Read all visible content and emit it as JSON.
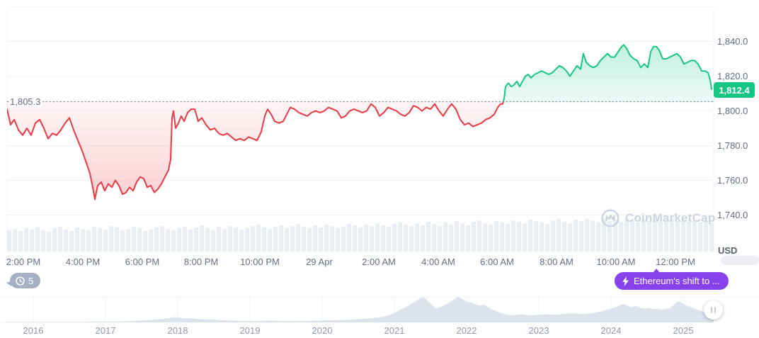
{
  "watermark": {
    "label": "CoinMarketCap"
  },
  "badges": {
    "history_count": "5",
    "annotation_label": "Ethereum's shift to ..."
  },
  "colors": {
    "up": "#16c784",
    "down": "#ea3943",
    "annotation_purple": "#8742ec",
    "history_badge_gray": "#a6b0c3",
    "grid": "#eff2f5",
    "axis_text": "#616e85",
    "baseline_dots": "#8e97a8",
    "volume_bar": "#e9eef4",
    "navigator_fill": "#dde3ed",
    "watermark_gray": "#ccd3e0"
  },
  "chart_data": {
    "type": "line",
    "title": "Ethereum price chart (intraday, baseline vs previous close)",
    "currency": "USD",
    "baseline": {
      "value": 1805.3,
      "label": "1,805.3"
    },
    "last_price": {
      "value": 1812.4,
      "label": "1,812.4"
    },
    "ylim": [
      1718,
      1860
    ],
    "grid": "horizontal",
    "y_ticks": [
      {
        "v": 1840,
        "label": "1,840.0"
      },
      {
        "v": 1820,
        "label": "1,820.0"
      },
      {
        "v": 1800,
        "label": "1,800.0"
      },
      {
        "v": 1780,
        "label": "1,780.0"
      },
      {
        "v": 1760,
        "label": "1,760.0"
      },
      {
        "v": 1740,
        "label": "1,740.0"
      }
    ],
    "x_ticks": [
      {
        "x": 33,
        "label": "2:00 PM"
      },
      {
        "x": 117,
        "label": "4:00 PM"
      },
      {
        "x": 201,
        "label": "6:00 PM"
      },
      {
        "x": 284,
        "label": "8:00 PM"
      },
      {
        "x": 367,
        "label": "10:00 PM"
      },
      {
        "x": 451,
        "label": "29 Apr"
      },
      {
        "x": 535,
        "label": "2:00 AM"
      },
      {
        "x": 619,
        "label": "4:00 AM"
      },
      {
        "x": 702,
        "label": "6:00 AM"
      },
      {
        "x": 786,
        "label": "8:00 AM"
      },
      {
        "x": 870,
        "label": "10:00 AM"
      },
      {
        "x": 954,
        "label": "12:00 PM"
      }
    ],
    "series": [
      [
        10,
        1801
      ],
      [
        15,
        1792
      ],
      [
        20,
        1795
      ],
      [
        26,
        1789
      ],
      [
        32,
        1786
      ],
      [
        38,
        1790
      ],
      [
        44,
        1786
      ],
      [
        50,
        1793
      ],
      [
        56,
        1795
      ],
      [
        62,
        1790
      ],
      [
        68,
        1784
      ],
      [
        74,
        1787
      ],
      [
        80,
        1786
      ],
      [
        86,
        1789
      ],
      [
        92,
        1793
      ],
      [
        98,
        1796
      ],
      [
        104,
        1789
      ],
      [
        110,
        1783
      ],
      [
        116,
        1777
      ],
      [
        122,
        1770
      ],
      [
        127,
        1764
      ],
      [
        131,
        1756
      ],
      [
        134,
        1749
      ],
      [
        138,
        1757
      ],
      [
        143,
        1759
      ],
      [
        148,
        1754
      ],
      [
        153,
        1758
      ],
      [
        158,
        1756
      ],
      [
        163,
        1760
      ],
      [
        168,
        1757
      ],
      [
        173,
        1752
      ],
      [
        178,
        1753
      ],
      [
        183,
        1756
      ],
      [
        188,
        1754
      ],
      [
        193,
        1759
      ],
      [
        198,
        1762
      ],
      [
        203,
        1761
      ],
      [
        208,
        1756
      ],
      [
        213,
        1757
      ],
      [
        218,
        1753
      ],
      [
        223,
        1755
      ],
      [
        228,
        1758
      ],
      [
        233,
        1762
      ],
      [
        238,
        1766
      ],
      [
        241,
        1772
      ],
      [
        243,
        1796
      ],
      [
        245,
        1800
      ],
      [
        248,
        1790
      ],
      [
        252,
        1793
      ],
      [
        256,
        1797
      ],
      [
        260,
        1794
      ],
      [
        265,
        1799
      ],
      [
        270,
        1801
      ],
      [
        275,
        1801
      ],
      [
        280,
        1794
      ],
      [
        285,
        1796
      ],
      [
        291,
        1792
      ],
      [
        297,
        1789
      ],
      [
        303,
        1790
      ],
      [
        309,
        1787
      ],
      [
        315,
        1786
      ],
      [
        321,
        1787
      ],
      [
        327,
        1785
      ],
      [
        333,
        1783
      ],
      [
        339,
        1784
      ],
      [
        345,
        1783
      ],
      [
        351,
        1785
      ],
      [
        357,
        1784
      ],
      [
        363,
        1783
      ],
      [
        369,
        1788
      ],
      [
        374,
        1797
      ],
      [
        378,
        1801
      ],
      [
        383,
        1798
      ],
      [
        388,
        1794
      ],
      [
        394,
        1793
      ],
      [
        400,
        1794
      ],
      [
        405,
        1798
      ],
      [
        410,
        1802
      ],
      [
        416,
        1801
      ],
      [
        422,
        1799
      ],
      [
        428,
        1798
      ],
      [
        434,
        1797
      ],
      [
        440,
        1799
      ],
      [
        446,
        1800
      ],
      [
        452,
        1799
      ],
      [
        458,
        1800
      ],
      [
        464,
        1802
      ],
      [
        470,
        1801
      ],
      [
        476,
        1800
      ],
      [
        482,
        1796
      ],
      [
        488,
        1797
      ],
      [
        494,
        1800
      ],
      [
        500,
        1801
      ],
      [
        506,
        1800
      ],
      [
        512,
        1799
      ],
      [
        518,
        1800
      ],
      [
        524,
        1804
      ],
      [
        530,
        1802
      ],
      [
        536,
        1797
      ],
      [
        542,
        1799
      ],
      [
        548,
        1802
      ],
      [
        554,
        1801
      ],
      [
        560,
        1800
      ],
      [
        566,
        1798
      ],
      [
        572,
        1797
      ],
      [
        578,
        1799
      ],
      [
        584,
        1803
      ],
      [
        590,
        1802
      ],
      [
        596,
        1800
      ],
      [
        602,
        1802
      ],
      [
        608,
        1801
      ],
      [
        614,
        1804
      ],
      [
        620,
        1800
      ],
      [
        626,
        1797
      ],
      [
        632,
        1801
      ],
      [
        638,
        1804
      ],
      [
        644,
        1801
      ],
      [
        650,
        1795
      ],
      [
        656,
        1792
      ],
      [
        662,
        1793
      ],
      [
        668,
        1791
      ],
      [
        674,
        1792
      ],
      [
        680,
        1793
      ],
      [
        686,
        1795
      ],
      [
        692,
        1796
      ],
      [
        698,
        1798
      ],
      [
        703,
        1802
      ],
      [
        707,
        1804
      ],
      [
        710,
        1804
      ],
      [
        712,
        1807
      ],
      [
        714,
        1814
      ],
      [
        718,
        1816
      ],
      [
        722,
        1814
      ],
      [
        726,
        1815
      ],
      [
        730,
        1817
      ],
      [
        734,
        1814
      ],
      [
        738,
        1817
      ],
      [
        742,
        1820
      ],
      [
        746,
        1821
      ],
      [
        750,
        1819
      ],
      [
        755,
        1821
      ],
      [
        760,
        1822
      ],
      [
        765,
        1823
      ],
      [
        770,
        1822
      ],
      [
        775,
        1821
      ],
      [
        780,
        1822
      ],
      [
        785,
        1824
      ],
      [
        790,
        1826
      ],
      [
        795,
        1825
      ],
      [
        800,
        1823
      ],
      [
        805,
        1820
      ],
      [
        810,
        1823
      ],
      [
        815,
        1826
      ],
      [
        820,
        1824
      ],
      [
        824,
        1833
      ],
      [
        828,
        1828
      ],
      [
        833,
        1826
      ],
      [
        838,
        1825
      ],
      [
        843,
        1826
      ],
      [
        848,
        1829
      ],
      [
        853,
        1831
      ],
      [
        858,
        1833
      ],
      [
        863,
        1831
      ],
      [
        868,
        1831
      ],
      [
        873,
        1834
      ],
      [
        878,
        1837
      ],
      [
        881,
        1838
      ],
      [
        885,
        1836
      ],
      [
        890,
        1832
      ],
      [
        895,
        1830
      ],
      [
        900,
        1829
      ],
      [
        905,
        1825
      ],
      [
        910,
        1827
      ],
      [
        915,
        1825
      ],
      [
        919,
        1834
      ],
      [
        923,
        1837
      ],
      [
        927,
        1837
      ],
      [
        931,
        1835
      ],
      [
        936,
        1830
      ],
      [
        941,
        1830
      ],
      [
        946,
        1831
      ],
      [
        951,
        1832
      ],
      [
        956,
        1833
      ],
      [
        961,
        1831
      ],
      [
        966,
        1827
      ],
      [
        971,
        1828
      ],
      [
        976,
        1829
      ],
      [
        981,
        1829
      ],
      [
        986,
        1827
      ],
      [
        991,
        1823
      ],
      [
        996,
        1823
      ],
      [
        1000,
        1822
      ],
      [
        1003,
        1818
      ],
      [
        1005,
        1812.4
      ]
    ],
    "volume_bars": [
      30,
      32,
      29,
      33,
      31,
      34,
      30,
      28,
      33,
      35,
      31,
      29,
      34,
      32,
      30,
      35,
      33,
      31,
      36,
      34,
      30,
      32,
      35,
      33,
      29,
      31,
      34,
      36,
      32,
      30,
      33,
      35,
      31,
      34,
      37,
      33,
      30,
      35,
      32,
      36,
      34,
      31,
      33,
      36,
      38,
      34,
      32,
      35,
      37,
      33,
      36,
      39,
      35,
      33,
      37,
      34,
      38,
      36,
      33,
      35,
      39,
      37,
      34,
      38,
      36,
      40,
      37,
      35,
      39,
      41,
      38,
      36,
      40,
      37,
      42,
      39,
      36,
      41,
      38,
      43,
      40,
      37,
      42,
      44,
      40,
      38,
      43,
      41,
      39,
      44,
      42,
      40,
      45,
      43,
      41,
      39,
      44,
      46,
      42,
      40,
      45,
      43,
      46,
      44,
      41,
      46,
      43,
      45,
      42,
      46,
      44,
      41,
      45,
      43,
      46,
      42,
      44,
      46,
      43,
      45,
      42,
      44,
      41,
      43,
      40
    ],
    "navigator": {
      "years": [
        {
          "x": 47,
          "label": "2016"
        },
        {
          "x": 149,
          "label": "2017"
        },
        {
          "x": 251,
          "label": "2018"
        },
        {
          "x": 353,
          "label": "2019"
        },
        {
          "x": 455,
          "label": "2020"
        },
        {
          "x": 557,
          "label": "2021"
        },
        {
          "x": 659,
          "label": "2022"
        },
        {
          "x": 761,
          "label": "2023"
        },
        {
          "x": 863,
          "label": "2024"
        },
        {
          "x": 965,
          "label": "2025"
        }
      ],
      "profile": [
        [
          10,
          0.02
        ],
        [
          30,
          0.02
        ],
        [
          50,
          0.02
        ],
        [
          70,
          0.02
        ],
        [
          90,
          0.02
        ],
        [
          110,
          0.02
        ],
        [
          130,
          0.03
        ],
        [
          150,
          0.03
        ],
        [
          165,
          0.04
        ],
        [
          180,
          0.05
        ],
        [
          195,
          0.07
        ],
        [
          210,
          0.09
        ],
        [
          220,
          0.11
        ],
        [
          230,
          0.13
        ],
        [
          240,
          0.17
        ],
        [
          248,
          0.22
        ],
        [
          255,
          0.18
        ],
        [
          262,
          0.15
        ],
        [
          270,
          0.17
        ],
        [
          278,
          0.14
        ],
        [
          286,
          0.12
        ],
        [
          294,
          0.11
        ],
        [
          302,
          0.12
        ],
        [
          310,
          0.09
        ],
        [
          320,
          0.08
        ],
        [
          330,
          0.07
        ],
        [
          340,
          0.06
        ],
        [
          350,
          0.06
        ],
        [
          360,
          0.05
        ],
        [
          370,
          0.06
        ],
        [
          380,
          0.07
        ],
        [
          390,
          0.06
        ],
        [
          400,
          0.06
        ],
        [
          410,
          0.05
        ],
        [
          420,
          0.06
        ],
        [
          430,
          0.06
        ],
        [
          440,
          0.07
        ],
        [
          450,
          0.07
        ],
        [
          460,
          0.08
        ],
        [
          470,
          0.08
        ],
        [
          480,
          0.09
        ],
        [
          490,
          0.1
        ],
        [
          500,
          0.11
        ],
        [
          510,
          0.13
        ],
        [
          520,
          0.15
        ],
        [
          530,
          0.18
        ],
        [
          540,
          0.22
        ],
        [
          550,
          0.28
        ],
        [
          558,
          0.38
        ],
        [
          566,
          0.5
        ],
        [
          574,
          0.62
        ],
        [
          582,
          0.75
        ],
        [
          590,
          0.88
        ],
        [
          598,
          1.0
        ],
        [
          604,
          0.85
        ],
        [
          610,
          0.68
        ],
        [
          616,
          0.55
        ],
        [
          622,
          0.6
        ],
        [
          628,
          0.68
        ],
        [
          634,
          0.78
        ],
        [
          640,
          0.88
        ],
        [
          647,
          1.0
        ],
        [
          653,
          0.92
        ],
        [
          659,
          0.82
        ],
        [
          665,
          0.78
        ],
        [
          671,
          0.72
        ],
        [
          677,
          0.66
        ],
        [
          683,
          0.7
        ],
        [
          689,
          0.6
        ],
        [
          695,
          0.5
        ],
        [
          701,
          0.44
        ],
        [
          707,
          0.38
        ],
        [
          713,
          0.33
        ],
        [
          720,
          0.28
        ],
        [
          728,
          0.3
        ],
        [
          736,
          0.32
        ],
        [
          744,
          0.29
        ],
        [
          752,
          0.27
        ],
        [
          760,
          0.3
        ],
        [
          768,
          0.32
        ],
        [
          776,
          0.31
        ],
        [
          784,
          0.3
        ],
        [
          792,
          0.32
        ],
        [
          800,
          0.34
        ],
        [
          808,
          0.36
        ],
        [
          816,
          0.34
        ],
        [
          824,
          0.32
        ],
        [
          832,
          0.35
        ],
        [
          840,
          0.38
        ],
        [
          848,
          0.42
        ],
        [
          856,
          0.48
        ],
        [
          864,
          0.55
        ],
        [
          872,
          0.62
        ],
        [
          880,
          0.72
        ],
        [
          886,
          0.66
        ],
        [
          892,
          0.6
        ],
        [
          898,
          0.64
        ],
        [
          904,
          0.58
        ],
        [
          910,
          0.54
        ],
        [
          916,
          0.56
        ],
        [
          922,
          0.52
        ],
        [
          928,
          0.54
        ],
        [
          934,
          0.5
        ],
        [
          940,
          0.52
        ],
        [
          946,
          0.56
        ],
        [
          950,
          0.64
        ],
        [
          954,
          0.74
        ],
        [
          958,
          0.84
        ],
        [
          962,
          0.78
        ],
        [
          966,
          0.72
        ],
        [
          970,
          0.66
        ],
        [
          975,
          0.6
        ],
        [
          980,
          0.55
        ],
        [
          985,
          0.5
        ],
        [
          990,
          0.45
        ],
        [
          995,
          0.4
        ],
        [
          1000,
          0.36
        ],
        [
          1004,
          0.42
        ],
        [
          1008,
          0.46
        ]
      ]
    }
  }
}
